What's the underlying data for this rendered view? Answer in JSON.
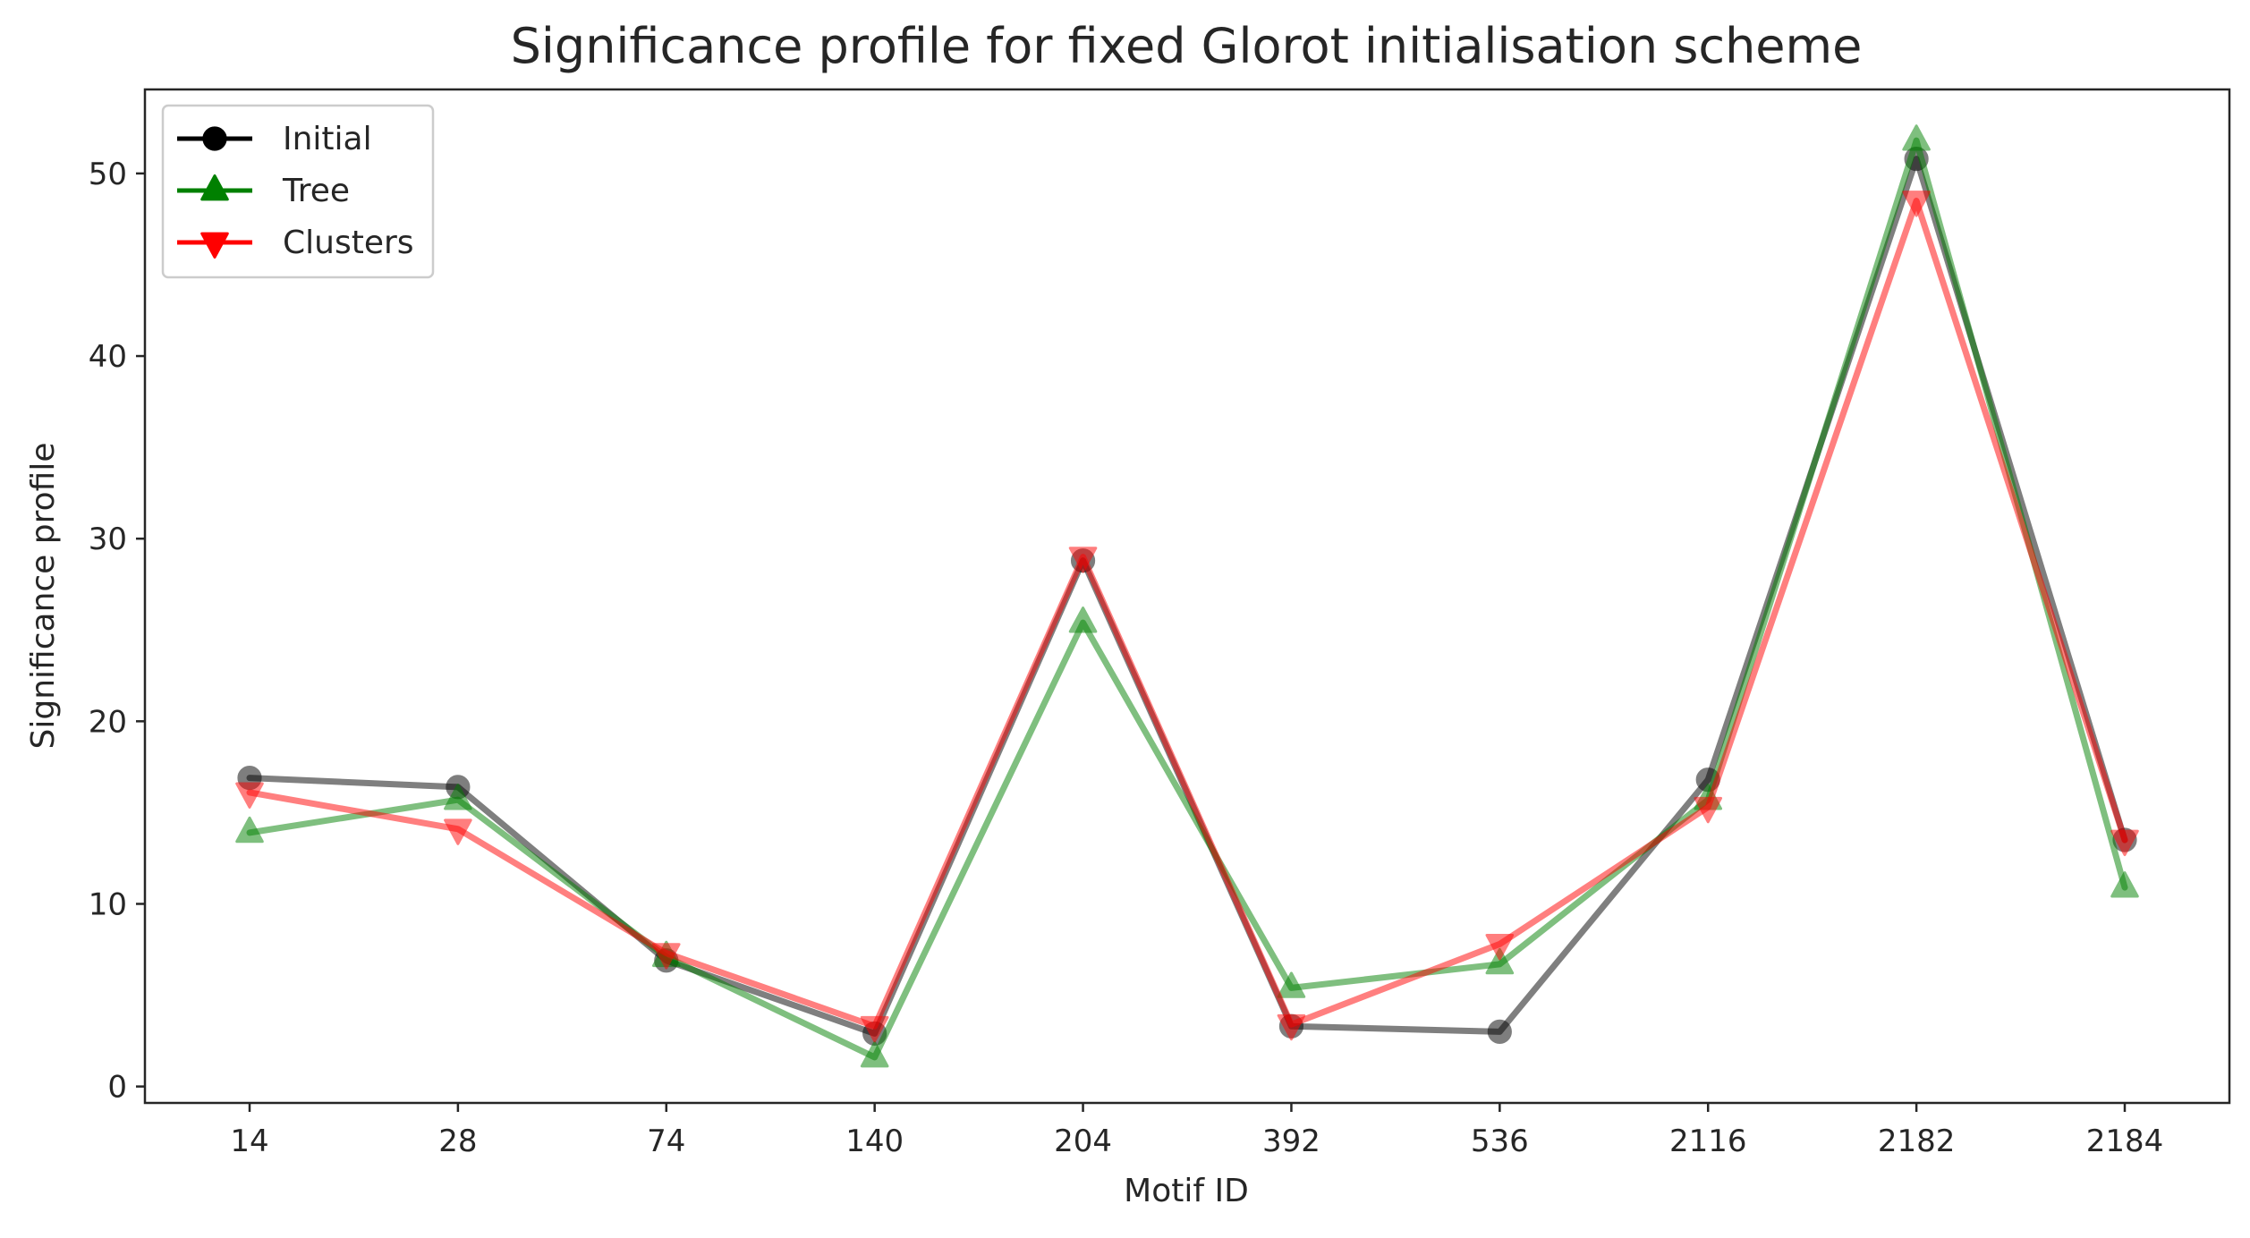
{
  "chart_data": {
    "type": "line",
    "title": "Significance profile for fixed Glorot initialisation scheme",
    "xlabel": "Motif ID",
    "ylabel": "Significance profile",
    "categories": [
      "14",
      "28",
      "74",
      "140",
      "204",
      "392",
      "536",
      "2116",
      "2182",
      "2184"
    ],
    "ylim": [
      -0.9,
      54.6
    ],
    "yticks": [
      0,
      10,
      20,
      30,
      40,
      50
    ],
    "grid": false,
    "legend_position": "upper-left",
    "series": [
      {
        "name": "Initial",
        "color": "#000000",
        "marker": "circle",
        "values": [
          16.9,
          16.4,
          6.9,
          2.9,
          28.8,
          3.3,
          3.0,
          16.8,
          50.8,
          13.5
        ]
      },
      {
        "name": "Tree",
        "color": "#008000",
        "marker": "triangle-up",
        "values": [
          13.9,
          15.7,
          7.1,
          1.6,
          25.4,
          5.4,
          6.7,
          15.7,
          51.8,
          10.9
        ]
      },
      {
        "name": "Clusters",
        "color": "#ff0000",
        "marker": "triangle-down",
        "values": [
          16.1,
          14.1,
          7.3,
          3.3,
          29.0,
          3.4,
          7.8,
          15.3,
          48.5,
          13.5
        ]
      }
    ]
  }
}
